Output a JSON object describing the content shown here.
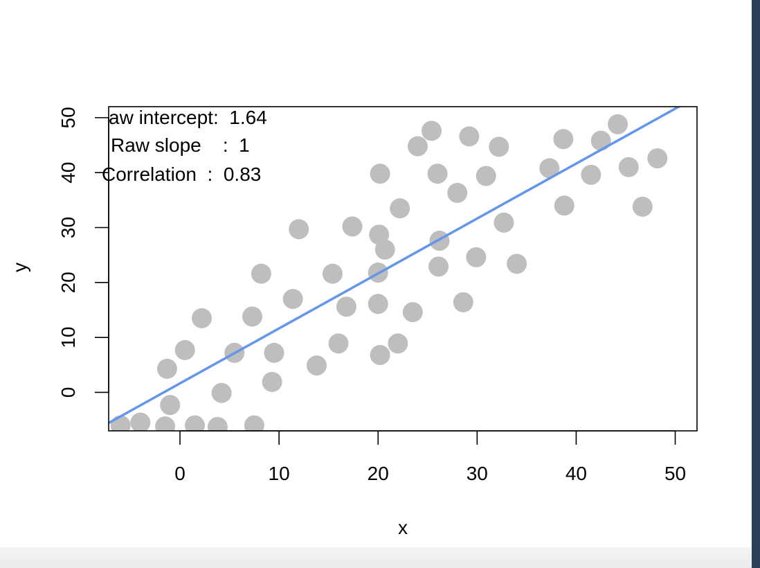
{
  "chart_data": {
    "type": "scatter",
    "title": "",
    "xlabel": "x",
    "ylabel": "y",
    "xlim": [
      -7.2,
      52.2
    ],
    "ylim": [
      -7,
      52
    ],
    "x_ticks": [
      0,
      10,
      20,
      30,
      40,
      50
    ],
    "y_ticks": [
      0,
      10,
      20,
      30,
      40,
      50
    ],
    "x_tick_labels": [
      "0",
      "10",
      "20",
      "30",
      "40",
      "50"
    ],
    "y_tick_labels": [
      "0",
      "10",
      "20",
      "30",
      "40",
      "50"
    ],
    "grid": false,
    "legend": null,
    "annotations": [
      "aw intercept:  1.64",
      "Raw slope    :  1",
      "Correlation  :  0.83"
    ],
    "series": [
      {
        "color": "#bebebe",
        "x": [
          -6.0,
          -4.0,
          -1.5,
          0.5,
          2.2,
          -1.3,
          -1.0,
          1.5,
          3.8,
          4.2,
          5.5,
          7.5,
          8.2,
          7.3,
          9.5,
          9.3,
          11.4,
          12.0,
          13.8,
          15.4,
          16.0,
          16.8,
          17.4,
          20.0,
          20.2,
          20.7,
          20.0,
          20.1,
          20.2,
          22.0,
          22.2,
          23.5,
          24.0,
          25.4,
          26.0,
          26.1,
          26.2,
          28.0,
          28.6,
          29.2,
          29.9,
          30.9,
          32.2,
          32.7,
          34.0,
          37.3,
          38.7,
          38.8,
          41.5,
          42.5,
          44.2,
          45.3,
          46.7,
          48.2
        ],
        "y": [
          -6.0,
          -5.5,
          -6.2,
          7.7,
          13.5,
          4.3,
          -2.3,
          -6.0,
          -6.3,
          -0.1,
          7.2,
          -6.0,
          21.6,
          13.8,
          7.2,
          1.9,
          17.0,
          29.7,
          4.9,
          21.6,
          8.9,
          15.6,
          30.2,
          16.1,
          6.8,
          26.0,
          21.8,
          28.7,
          39.8,
          8.9,
          33.5,
          14.6,
          44.8,
          47.6,
          39.8,
          22.9,
          27.6,
          36.3,
          16.4,
          46.6,
          24.6,
          39.4,
          44.7,
          30.9,
          23.4,
          40.8,
          46.1,
          34.0,
          39.6,
          45.8,
          48.8,
          41.0,
          33.8,
          42.6
        ]
      }
    ],
    "fit_line": {
      "color": "#6495ed",
      "intercept": 1.64,
      "slope": 1
    }
  }
}
